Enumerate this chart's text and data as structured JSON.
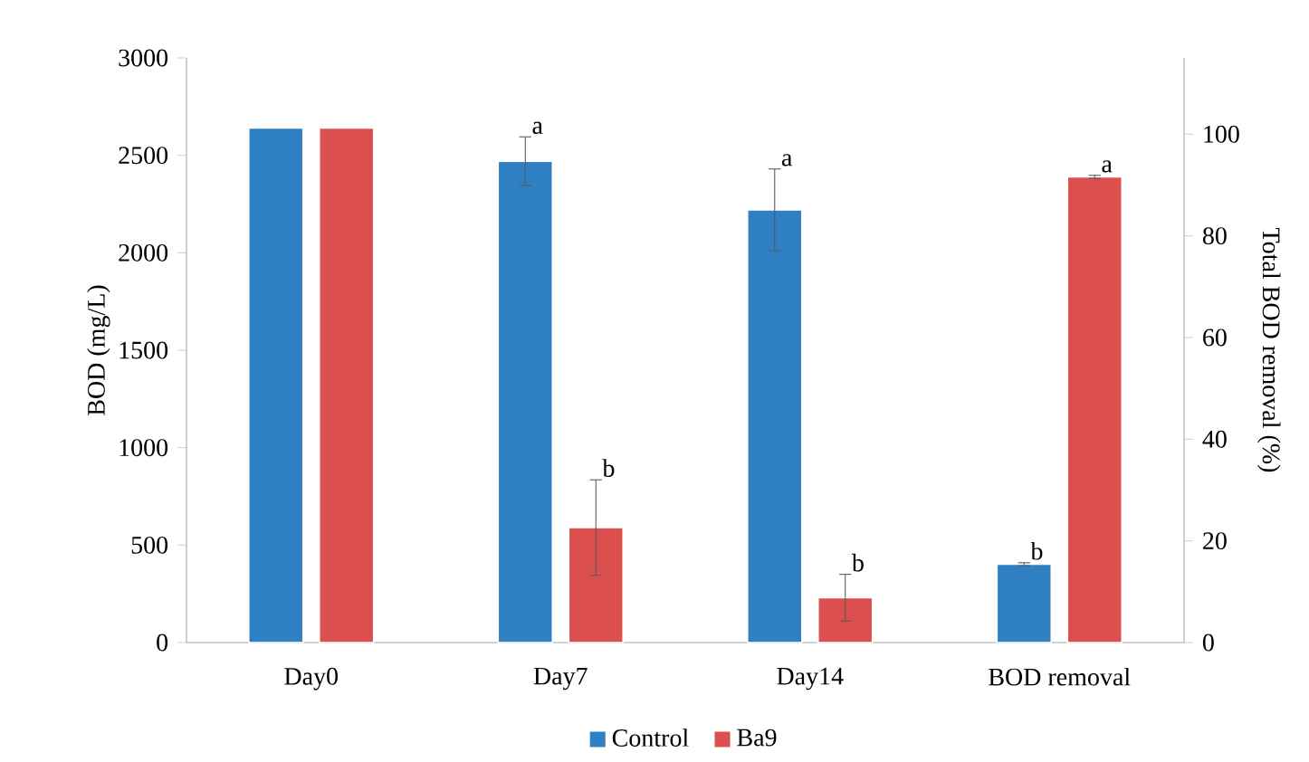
{
  "chart_data": {
    "type": "bar",
    "categories": [
      "Day0",
      "Day7",
      "Day14",
      "BOD removal"
    ],
    "ylabel": "BOD (mg/L)",
    "y2label": "Total BOD removal (%)",
    "ylim": [
      0,
      3000
    ],
    "yticks": [
      0,
      500,
      1000,
      1500,
      2000,
      2500,
      3000
    ],
    "y2lim": [
      0,
      115
    ],
    "y2ticks": [
      0,
      20,
      40,
      60,
      80,
      100
    ],
    "legend": "bottom",
    "grid": false,
    "series": [
      {
        "name": "Control",
        "color": "#2e80c3",
        "values": [
          2640,
          2470,
          2220,
          null
        ],
        "errors": [
          null,
          125,
          210,
          null
        ],
        "value_labels": [
          null,
          "a",
          "a",
          null
        ]
      },
      {
        "name": "Ba9",
        "color": "#dc4f4f",
        "values": [
          2640,
          590,
          230,
          null
        ],
        "errors": [
          null,
          245,
          120,
          null
        ],
        "value_labels": [
          null,
          "b",
          "b",
          null
        ]
      },
      {
        "color": "#2e80c3",
        "axis": "y2",
        "values": [
          null,
          null,
          null,
          15.4
        ],
        "errors": [
          null,
          null,
          null,
          0.3
        ],
        "value_labels": [
          null,
          null,
          null,
          "b"
        ]
      },
      {
        "color": "#dc4f4f",
        "axis": "y2",
        "values": [
          null,
          null,
          null,
          91.6
        ],
        "errors": [
          null,
          null,
          null,
          0.3
        ],
        "value_labels": [
          null,
          null,
          null,
          "a"
        ]
      }
    ]
  }
}
